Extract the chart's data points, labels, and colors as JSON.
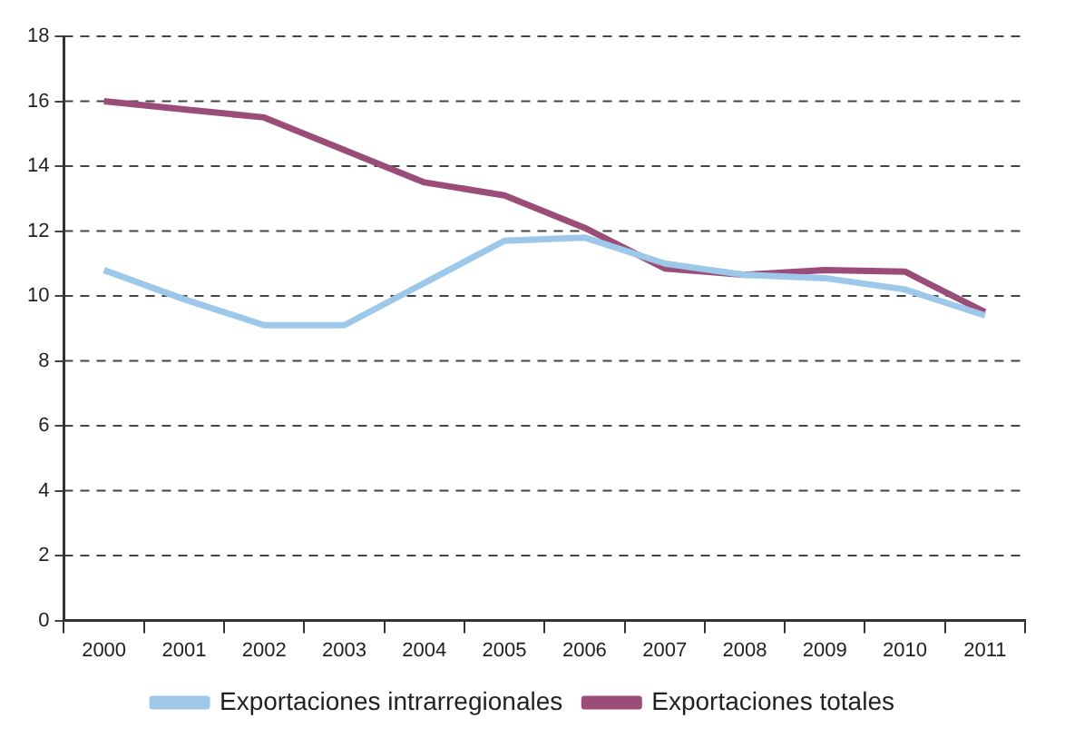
{
  "chart_data": {
    "type": "line",
    "categories": [
      "2000",
      "2001",
      "2002",
      "2003",
      "2004",
      "2005",
      "2006",
      "2007",
      "2008",
      "2009",
      "2010",
      "2011"
    ],
    "series": [
      {
        "name": "Exportaciones intrarregionales",
        "color": "#9dc8ea",
        "values": [
          10.8,
          9.9,
          9.1,
          9.1,
          10.4,
          11.7,
          11.8,
          11.0,
          10.65,
          10.55,
          10.2,
          9.4
        ]
      },
      {
        "name": "Exportaciones totales",
        "color": "#9b4d7a",
        "values": [
          16.0,
          15.75,
          15.5,
          14.5,
          13.5,
          13.1,
          12.1,
          10.85,
          10.65,
          10.8,
          10.75,
          9.5
        ]
      }
    ],
    "ylim": [
      0,
      18
    ],
    "yticks": [
      0,
      2,
      4,
      6,
      8,
      10,
      12,
      14,
      16,
      18
    ],
    "grid": "y",
    "legend": "bottom",
    "marker": "none",
    "line_style": "solid"
  }
}
